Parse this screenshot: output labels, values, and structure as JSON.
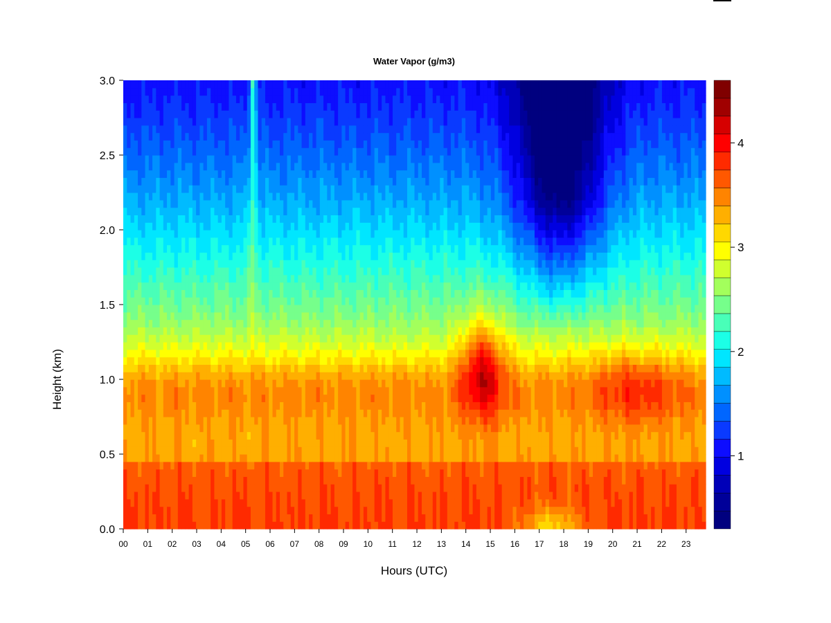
{
  "chart_data": {
    "type": "heatmap",
    "title": "Water Vapor (g/m3)",
    "xlabel": "Hours (UTC)",
    "ylabel": "Height (km)",
    "x_ticks": [
      "00",
      "01",
      "02",
      "03",
      "04",
      "05",
      "06",
      "07",
      "08",
      "09",
      "10",
      "11",
      "12",
      "13",
      "14",
      "15",
      "16",
      "17",
      "18",
      "19",
      "20",
      "21",
      "22",
      "23"
    ],
    "y_ticks": [
      "0.0",
      "0.5",
      "1.0",
      "1.5",
      "2.0",
      "2.5",
      "3.0"
    ],
    "xlim": [
      0,
      23.8
    ],
    "ylim": [
      0,
      3.0
    ],
    "colorbar": {
      "ticks": [
        "1",
        "2",
        "3",
        "4"
      ],
      "range": [
        0.3,
        4.6
      ],
      "levels": 22,
      "colors": [
        "#00007F",
        "#000099",
        "#0000B8",
        "#0000E0",
        "#0D0DFF",
        "#0A3AFF",
        "#0066FF",
        "#0090FF",
        "#00BBFF",
        "#00E6FF",
        "#1CFFE6",
        "#49FFB8",
        "#76FF8B",
        "#A3FF5C",
        "#D0FF2E",
        "#FFFF00",
        "#FFD800",
        "#FFAF00",
        "#FF8400",
        "#FF5800",
        "#FF2A00",
        "#FF0000",
        "#D60000",
        "#A00000",
        "#800000"
      ]
    },
    "grid": false,
    "colorscale": "jet"
  }
}
